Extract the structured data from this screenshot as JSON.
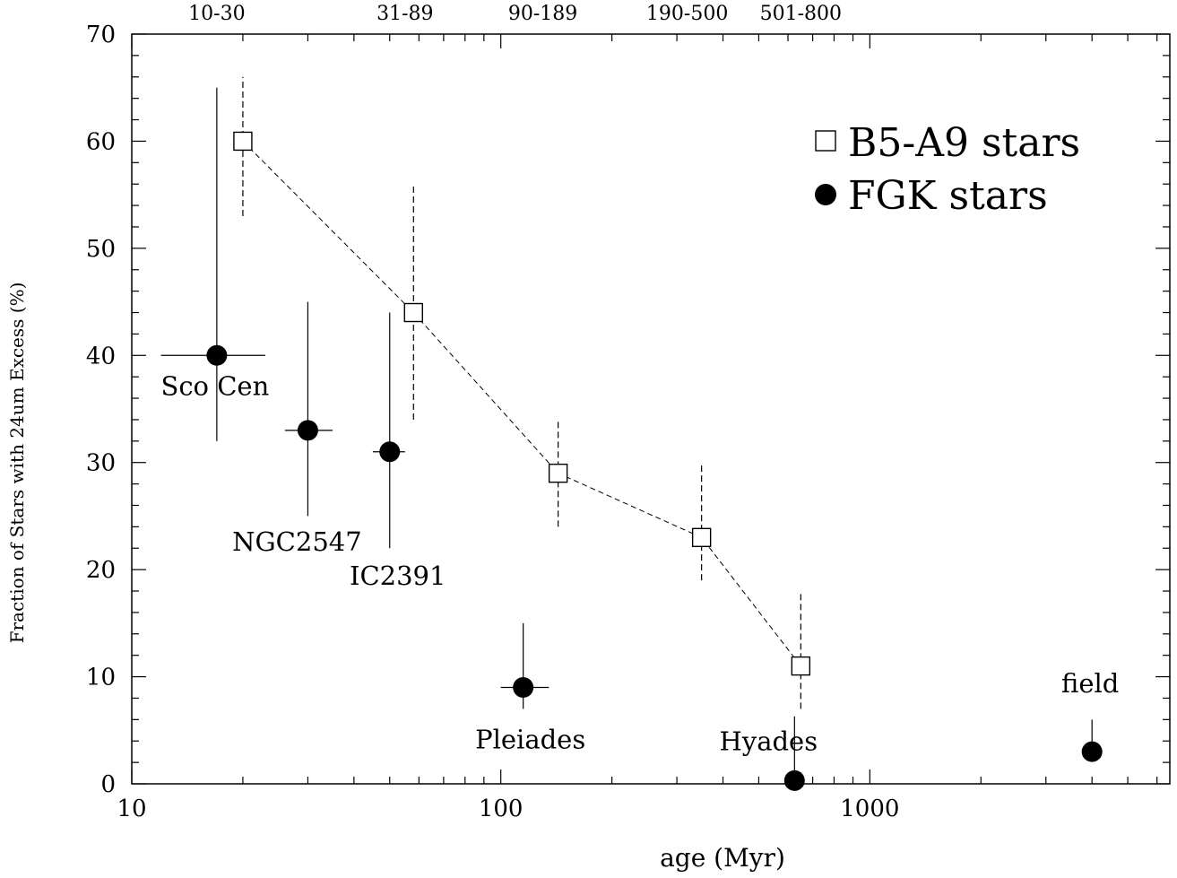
{
  "chart_data": {
    "type": "scatter",
    "xlabel": "age (Myr)",
    "ylabel": "Fraction of Stars with 24um Excess (%)",
    "xscale": "log",
    "xlim": [
      10,
      6500
    ],
    "ylim": [
      0,
      70
    ],
    "x_tick_labels": [
      "10",
      "100",
      "1000"
    ],
    "y_tick_labels": [
      "0",
      "10",
      "20",
      "30",
      "40",
      "50",
      "60",
      "70"
    ],
    "top_labels": [
      {
        "text": "10-30",
        "x": 17
      },
      {
        "text": "31-89",
        "x": 55
      },
      {
        "text": "90-189",
        "x": 130
      },
      {
        "text": "190-500",
        "x": 320
      },
      {
        "text": "501-800",
        "x": 650
      }
    ],
    "legend_position": "top-right",
    "series": [
      {
        "name": "B5-A9 stars",
        "marker": "open-square",
        "line": "dashed",
        "points": [
          {
            "x": 20,
            "y": 60,
            "ylo": 53,
            "yhi": 66
          },
          {
            "x": 58,
            "y": 44,
            "ylo": 34,
            "yhi": 56
          },
          {
            "x": 143,
            "y": 29,
            "ylo": 24,
            "yhi": 34
          },
          {
            "x": 350,
            "y": 23,
            "ylo": 19,
            "yhi": 30
          },
          {
            "x": 650,
            "y": 11,
            "ylo": 7,
            "yhi": 18
          }
        ]
      },
      {
        "name": "FGK stars",
        "marker": "filled-circle",
        "line": "none",
        "points": [
          {
            "x": 17,
            "y": 40,
            "ylo": 32,
            "yhi": 65,
            "xlo": 12,
            "xhi": 23,
            "label": "Sco Cen"
          },
          {
            "x": 30,
            "y": 33,
            "ylo": 25,
            "yhi": 45,
            "xlo": 26,
            "xhi": 35,
            "label": "NGC2547"
          },
          {
            "x": 50,
            "y": 31,
            "ylo": 22,
            "yhi": 44,
            "xlo": 45,
            "xhi": 55,
            "label": "IC2391"
          },
          {
            "x": 115,
            "y": 9,
            "ylo": 7,
            "yhi": 15,
            "xlo": 100,
            "xhi": 135,
            "label": "Pleiades"
          },
          {
            "x": 625,
            "y": 0.3,
            "ylo": 0,
            "yhi": 6.3,
            "label": "Hyades"
          },
          {
            "x": 4000,
            "y": 3,
            "ylo": 3,
            "yhi": 6,
            "label": "field"
          }
        ]
      }
    ]
  }
}
